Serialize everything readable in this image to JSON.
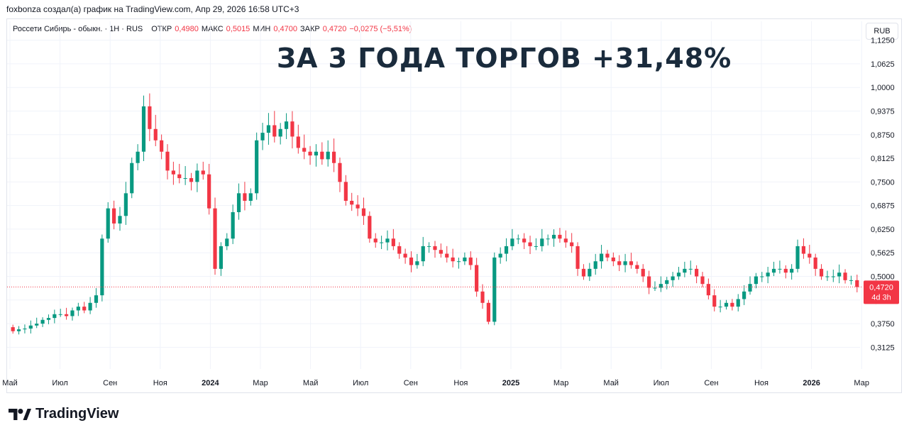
{
  "caption": "foxbonza создал(а) график на TradingView.com, Апр 29, 2026 16:58 UTC+3",
  "legend": {
    "symbol": "Россети Сибирь - обыкн. · 1Н · RUS",
    "open_label": "ОТКР",
    "open_value": "0,4980",
    "high_label": "МАКС",
    "high_value": "0,5015",
    "low_label": "МИН",
    "low_value": "0,4700",
    "close_label": "ЗАКР",
    "close_value": "0,4720",
    "change": "−0,0275 (−5,51%)"
  },
  "currency_button": "RUB",
  "headline": "ЗА 3 ГОДА ТОРГОВ +31,48%",
  "price_tag": {
    "value": "0,4720",
    "countdown": "4d 3h"
  },
  "brand": "TradingView",
  "colors": {
    "up": "#089981",
    "down": "#f23645",
    "grid": "#f0f3fa",
    "text": "#131722"
  },
  "chart_data": {
    "type": "candlestick",
    "y_axis_ticks": [
      "1,1250",
      "1,0625",
      "1,0000",
      "0,9375",
      "0,8750",
      "0,8125",
      "0,7500",
      "0,6875",
      "0,6250",
      "0,5625",
      "0,5000",
      "0,4375",
      "0,3750",
      "0,3125"
    ],
    "y_axis_tick_values": [
      1.125,
      1.0625,
      1.0,
      0.9375,
      0.875,
      0.8125,
      0.75,
      0.6875,
      0.625,
      0.5625,
      0.5,
      0.4375,
      0.375,
      0.3125
    ],
    "ylim": [
      0.255,
      1.175
    ],
    "x_axis_ticks": [
      "Май",
      "Июл",
      "Сен",
      "Ноя",
      "2024",
      "Мар",
      "Май",
      "Июл",
      "Сен",
      "Ноя",
      "2025",
      "Мар",
      "Май",
      "Июл",
      "Сен",
      "Ноя",
      "2026",
      "Мар"
    ],
    "last_price": 0.472,
    "closes": [
      0.355,
      0.36,
      0.362,
      0.37,
      0.375,
      0.385,
      0.39,
      0.4,
      0.4,
      0.395,
      0.41,
      0.42,
      0.41,
      0.43,
      0.45,
      0.6,
      0.68,
      0.64,
      0.66,
      0.72,
      0.8,
      0.83,
      0.95,
      0.89,
      0.86,
      0.83,
      0.78,
      0.77,
      0.76,
      0.76,
      0.75,
      0.78,
      0.77,
      0.68,
      0.52,
      0.58,
      0.6,
      0.67,
      0.72,
      0.7,
      0.72,
      0.86,
      0.88,
      0.9,
      0.87,
      0.89,
      0.91,
      0.87,
      0.84,
      0.83,
      0.82,
      0.83,
      0.81,
      0.83,
      0.8,
      0.75,
      0.7,
      0.69,
      0.68,
      0.66,
      0.6,
      0.59,
      0.59,
      0.6,
      0.58,
      0.56,
      0.55,
      0.53,
      0.54,
      0.58,
      0.58,
      0.57,
      0.56,
      0.55,
      0.54,
      0.54,
      0.55,
      0.53,
      0.46,
      0.43,
      0.38,
      0.55,
      0.56,
      0.58,
      0.6,
      0.6,
      0.59,
      0.58,
      0.58,
      0.6,
      0.6,
      0.61,
      0.6,
      0.59,
      0.58,
      0.52,
      0.5,
      0.52,
      0.54,
      0.56,
      0.55,
      0.54,
      0.53,
      0.54,
      0.53,
      0.52,
      0.5,
      0.47,
      0.47,
      0.48,
      0.49,
      0.5,
      0.51,
      0.52,
      0.52,
      0.5,
      0.48,
      0.45,
      0.42,
      0.42,
      0.43,
      0.42,
      0.44,
      0.46,
      0.48,
      0.5,
      0.5,
      0.51,
      0.52,
      0.52,
      0.51,
      0.52,
      0.58,
      0.56,
      0.55,
      0.52,
      0.5,
      0.5,
      0.5,
      0.51,
      0.49,
      0.49,
      0.472
    ]
  }
}
